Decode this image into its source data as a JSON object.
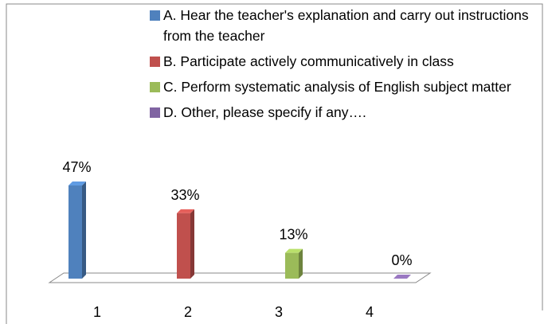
{
  "chart_data": {
    "type": "bar3d",
    "categories": [
      "1",
      "2",
      "3",
      "4"
    ],
    "series": [
      {
        "name": "A. Hear the teacher's explanation and carry out instructions from the teacher",
        "color": "#4f81bd",
        "values": [
          47,
          null,
          null,
          null
        ],
        "value_labels": [
          "47%",
          null,
          null,
          null
        ]
      },
      {
        "name": "B. Participate actively communicatively in class",
        "color": "#c0504d",
        "values": [
          null,
          33,
          null,
          null
        ],
        "value_labels": [
          null,
          "33%",
          null,
          null
        ]
      },
      {
        "name": "C. Perform systematic analysis of English subject matter",
        "color": "#9bbb59",
        "values": [
          null,
          null,
          13,
          null
        ],
        "value_labels": [
          null,
          null,
          "13%",
          null
        ]
      },
      {
        "name": "D. Other, please specify if any….",
        "color": "#8064a2",
        "values": [
          null,
          null,
          null,
          0
        ],
        "value_labels": [
          null,
          null,
          null,
          "0%"
        ]
      }
    ]
  }
}
